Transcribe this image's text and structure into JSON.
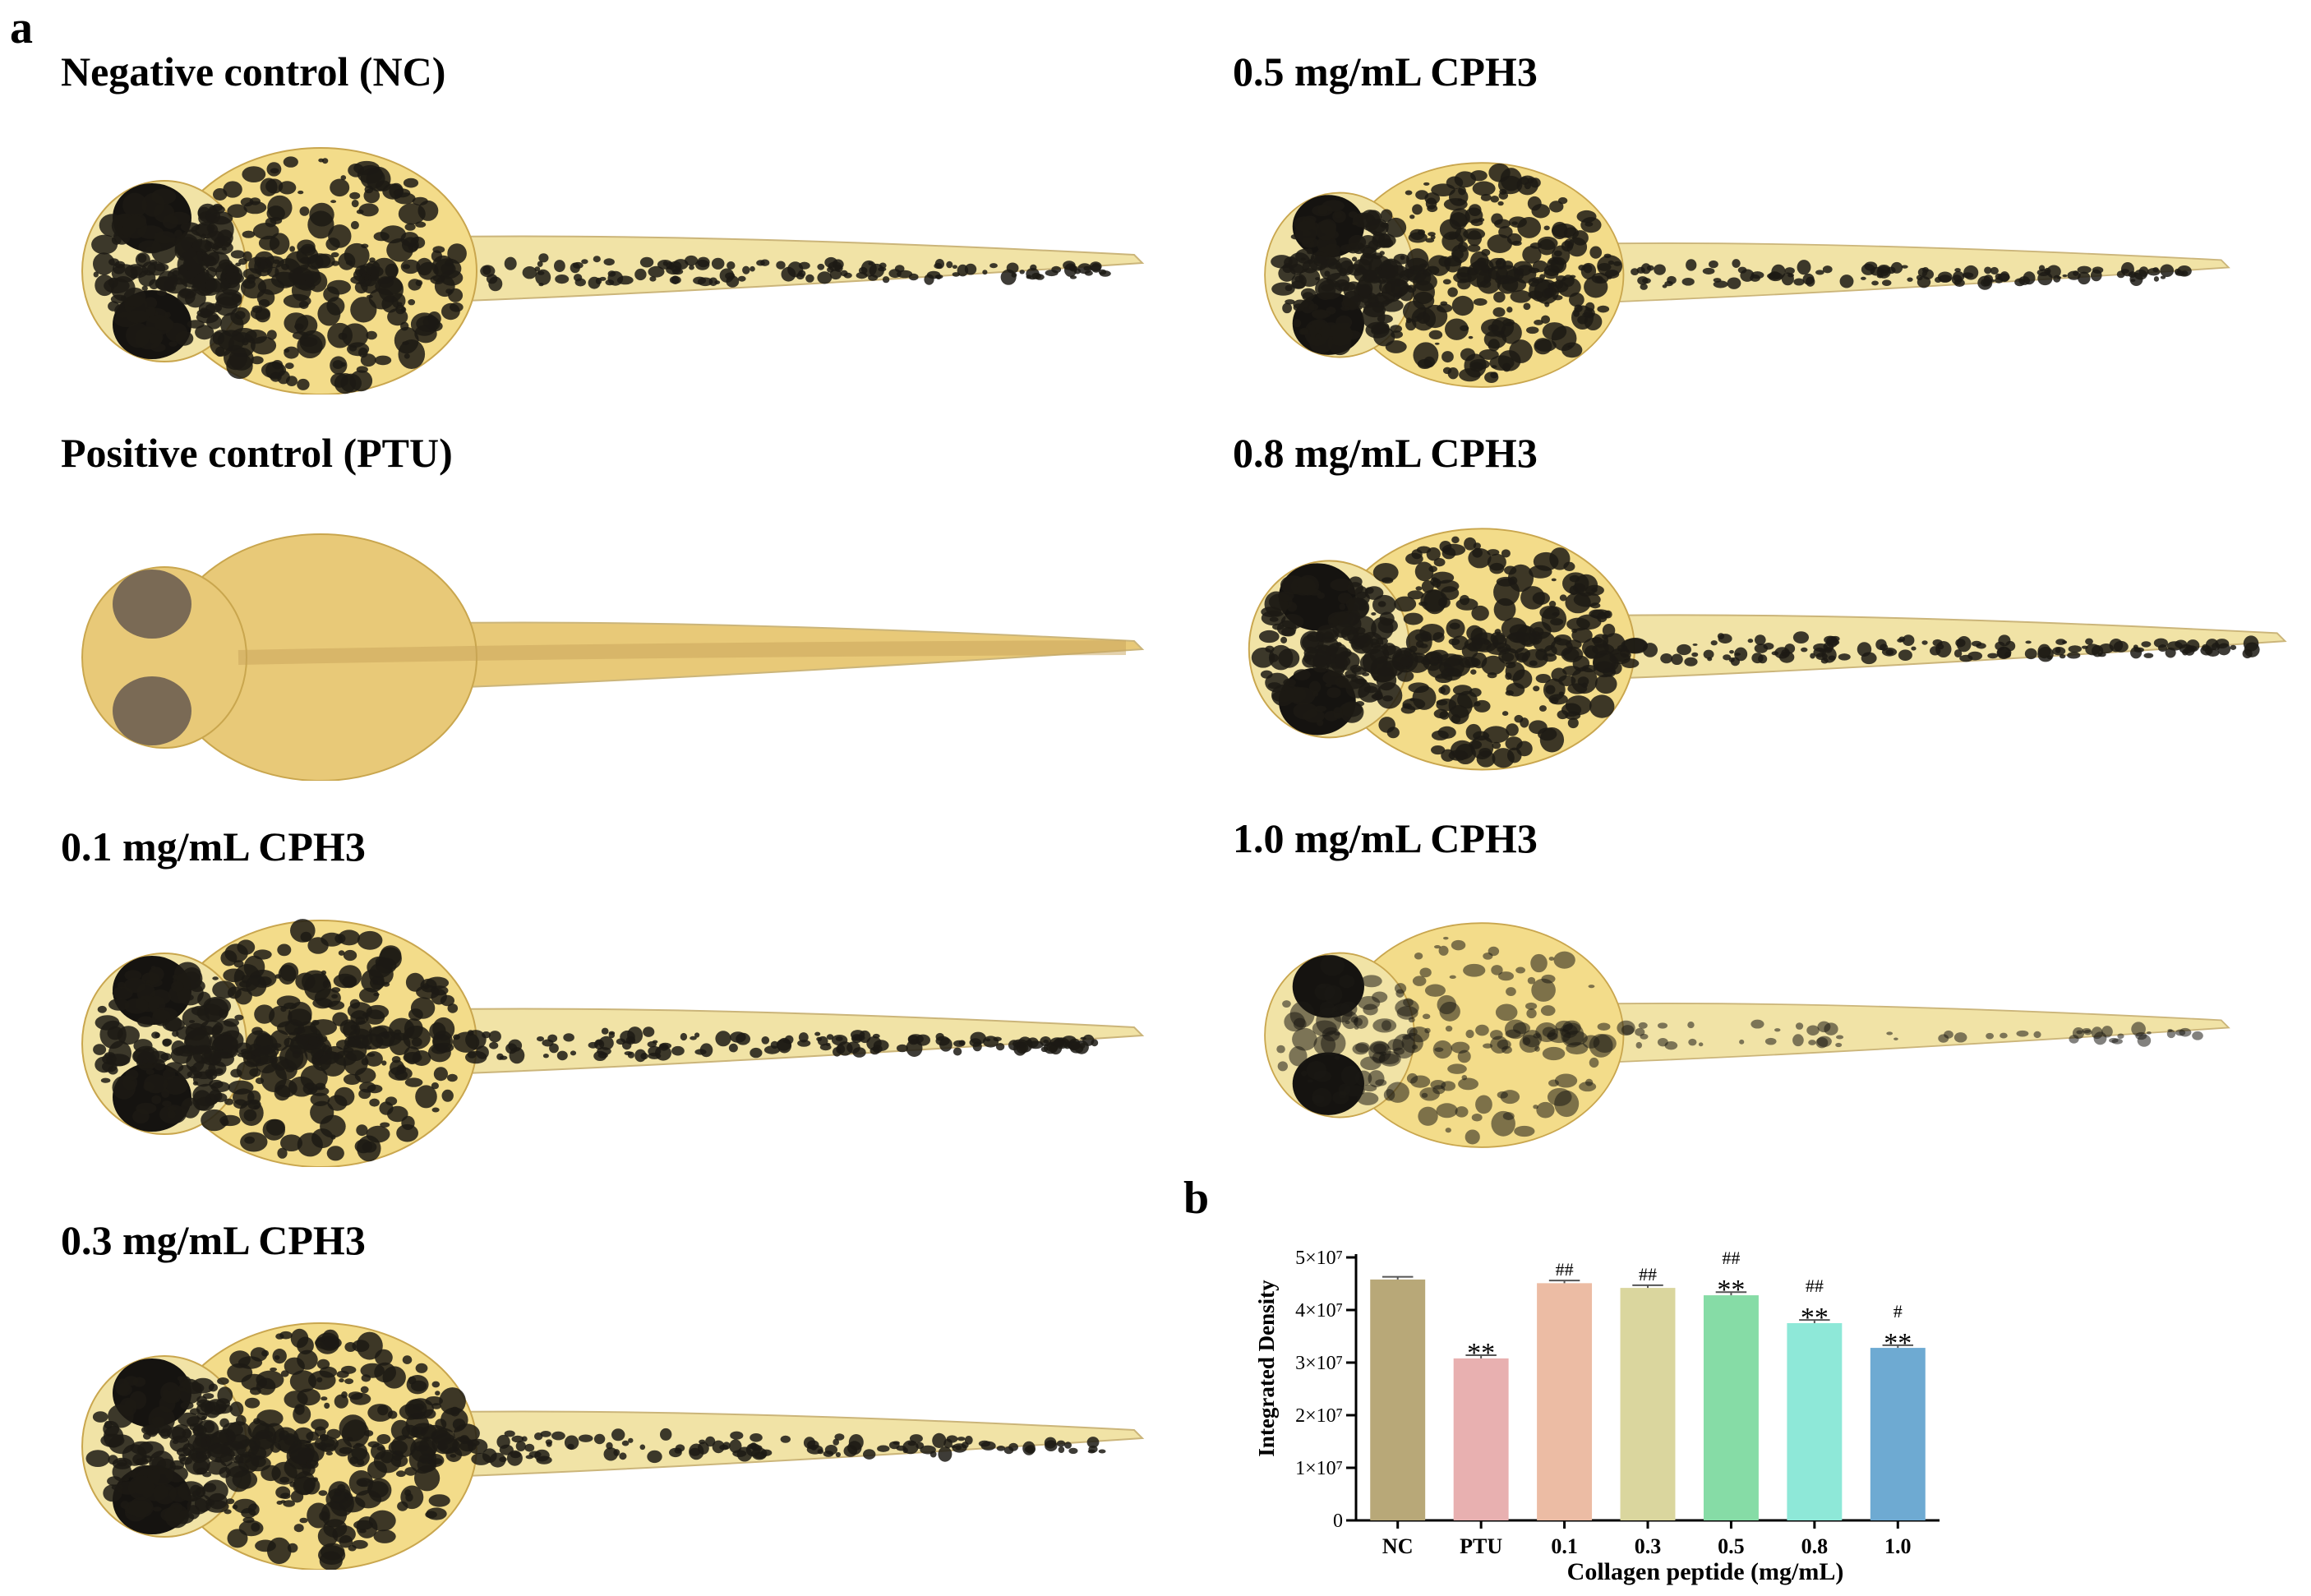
{
  "figure": {
    "panel_a_letter": "a",
    "panel_b_letter": "b"
  },
  "fish_panels": [
    {
      "label": "Negative control (NC)",
      "pigment": "dense"
    },
    {
      "label": "Positive control (PTU)",
      "pigment": "none"
    },
    {
      "label": "0.1 mg/mL CPH3",
      "pigment": "dense"
    },
    {
      "label": "0.3 mg/mL CPH3",
      "pigment": "dense"
    },
    {
      "label": "0.5 mg/mL CPH3",
      "pigment": "dense"
    },
    {
      "label": "0.8 mg/mL CPH3",
      "pigment": "dense"
    },
    {
      "label": "1.0 mg/mL CPH3",
      "pigment": "light"
    }
  ],
  "colors": {
    "yolk": "#f3dc8a",
    "body": "#f1e3a6",
    "pigment": "#1c1a14",
    "ptu_body": "#e8c978"
  },
  "chart_data": {
    "type": "bar",
    "title": "",
    "xlabel": "Collagen peptide (mg/mL)",
    "ylabel": "Integrated Density",
    "categories": [
      "NC",
      "PTU",
      "0.1",
      "0.3",
      "0.5",
      "0.8",
      "1.0"
    ],
    "values": [
      45800000,
      30800000,
      45100000,
      44200000,
      42800000,
      37500000,
      32800000
    ],
    "errors": [
      500000,
      600000,
      500000,
      500000,
      600000,
      600000,
      500000
    ],
    "bar_colors": [
      "#b8a878",
      "#e8b0b0",
      "#ecbca4",
      "#dad69e",
      "#86dca6",
      "#8ee8d8",
      "#6eaad2"
    ],
    "ylim": [
      0,
      50000000
    ],
    "yticks": [
      {
        "value": 0,
        "label": "0"
      },
      {
        "value": 10000000,
        "label": "1×10⁷"
      },
      {
        "value": 20000000,
        "label": "2×10⁷"
      },
      {
        "value": 30000000,
        "label": "3×10⁷"
      },
      {
        "value": 40000000,
        "label": "4×10⁷"
      },
      {
        "value": 50000000,
        "label": "5×10⁷"
      }
    ],
    "annotations": [
      {
        "index": 1,
        "lines": [
          "**"
        ]
      },
      {
        "index": 2,
        "lines": [
          "##"
        ]
      },
      {
        "index": 3,
        "lines": [
          "##"
        ]
      },
      {
        "index": 4,
        "lines": [
          "##",
          "**"
        ]
      },
      {
        "index": 5,
        "lines": [
          "##",
          "**"
        ]
      },
      {
        "index": 6,
        "lines": [
          "#",
          "**"
        ]
      }
    ],
    "grid": false,
    "legend": "none"
  }
}
